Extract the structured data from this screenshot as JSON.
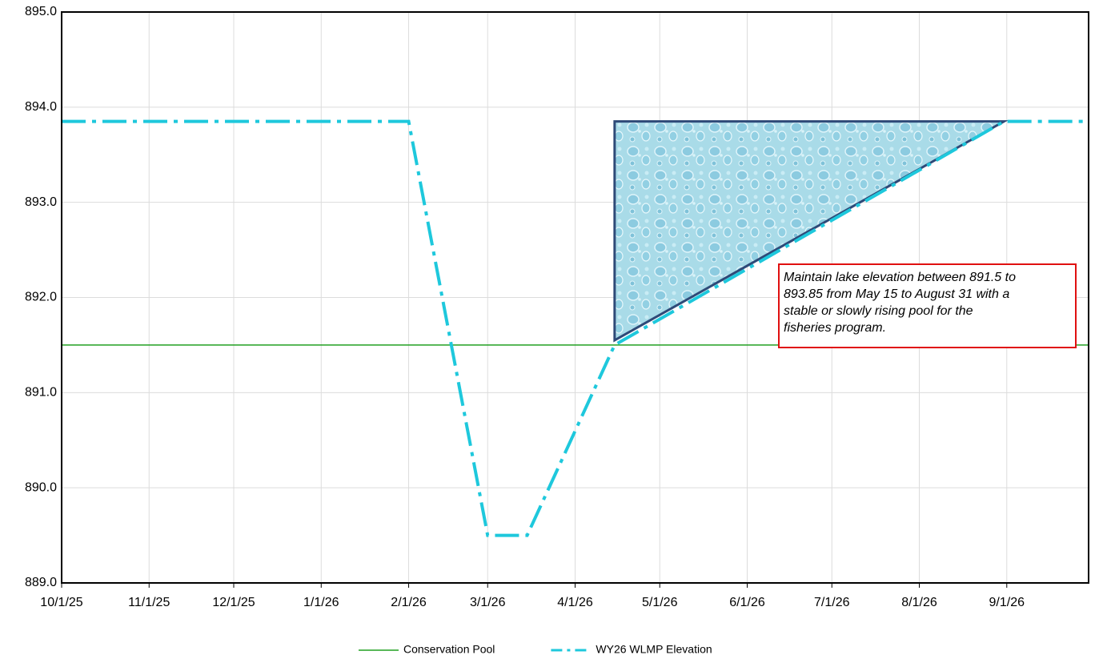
{
  "chart_data": {
    "type": "line",
    "series": [
      {
        "name": "Conservation Pool",
        "color": "#22a022",
        "dash": "solid",
        "x": [
          "2025-10-01",
          "2026-09-30"
        ],
        "values": [
          891.5,
          891.5
        ]
      },
      {
        "name": "WY26 WLMP Elevation",
        "color": "#1ec8dc",
        "dash": "dashdot",
        "x": [
          "2025-10-01",
          "2026-02-01",
          "2026-03-01",
          "2026-03-15",
          "2026-04-15",
          "2026-08-31",
          "2026-09-30"
        ],
        "values": [
          893.85,
          893.85,
          889.5,
          889.5,
          891.5,
          893.85,
          893.85
        ]
      }
    ],
    "shaded_region": {
      "x": [
        "2026-04-15",
        "2026-04-15",
        "2026-08-31"
      ],
      "values": [
        891.55,
        893.85,
        893.85
      ],
      "color": "#2e4a78"
    },
    "annotation": {
      "lines": [
        "Maintain lake elevation between 891.5 to",
        "893.85 from May 15 to August 31 with a",
        "stable or slowly rising pool for the",
        "fisheries program."
      ],
      "border_color": "#e01010"
    },
    "xlim": [
      "2025-10-01",
      "2026-09-30"
    ],
    "xticks": [
      {
        "value": "2025-10-01",
        "label": "10/1/25"
      },
      {
        "value": "2025-11-01",
        "label": "11/1/25"
      },
      {
        "value": "2025-12-01",
        "label": "12/1/25"
      },
      {
        "value": "2026-01-01",
        "label": "1/1/26"
      },
      {
        "value": "2026-02-01",
        "label": "2/1/26"
      },
      {
        "value": "2026-03-01",
        "label": "3/1/26"
      },
      {
        "value": "2026-04-01",
        "label": "4/1/26"
      },
      {
        "value": "2026-05-01",
        "label": "5/1/26"
      },
      {
        "value": "2026-06-01",
        "label": "6/1/26"
      },
      {
        "value": "2026-07-01",
        "label": "7/1/26"
      },
      {
        "value": "2026-08-01",
        "label": "8/1/26"
      },
      {
        "value": "2026-09-01",
        "label": "9/1/26"
      }
    ],
    "ylim": [
      889,
      895
    ],
    "yticks": [
      {
        "value": 889,
        "label": "889.0"
      },
      {
        "value": 890,
        "label": "890.0"
      },
      {
        "value": 891,
        "label": "891.0"
      },
      {
        "value": 892,
        "label": "892.0"
      },
      {
        "value": 893,
        "label": "893.0"
      },
      {
        "value": 894,
        "label": "894.0"
      },
      {
        "value": 895,
        "label": "895.0"
      }
    ],
    "grid": true
  }
}
